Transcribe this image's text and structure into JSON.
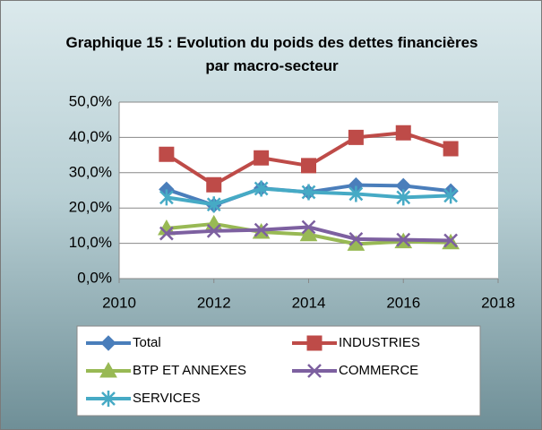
{
  "chart_data": {
    "type": "line",
    "title": "Graphique 15 : Evolution du poids des dettes financières par macro-secteur",
    "x": [
      2011,
      2012,
      2013,
      2014,
      2015,
      2016,
      2017
    ],
    "xlim": [
      2010,
      2018
    ],
    "xticks": [
      2010,
      2012,
      2014,
      2016,
      2018
    ],
    "ylim": [
      0,
      50
    ],
    "yticks": [
      {
        "value": 0,
        "label": "0,0%"
      },
      {
        "value": 10,
        "label": "10,0%"
      },
      {
        "value": 20,
        "label": "20,0%"
      },
      {
        "value": 30,
        "label": "30,0%"
      },
      {
        "value": 40,
        "label": "40,0%"
      },
      {
        "value": 50,
        "label": "50,0%"
      }
    ],
    "grid": true,
    "legend": "bottom",
    "series": [
      {
        "name": "Total",
        "color": "#4a7ebb",
        "values": [
          25.3,
          20.8,
          25.6,
          24.5,
          26.5,
          26.3,
          24.8
        ]
      },
      {
        "name": "INDUSTRIES",
        "color": "#be4b48",
        "values": [
          35.2,
          26.6,
          34.2,
          32.0,
          40.0,
          41.3,
          36.8
        ]
      },
      {
        "name": "BTP ET ANNEXES",
        "color": "#98b954",
        "values": [
          14.2,
          15.5,
          13.2,
          12.5,
          9.8,
          10.5,
          10.2
        ]
      },
      {
        "name": "COMMERCE",
        "color": "#7d60a0",
        "values": [
          12.8,
          13.5,
          13.8,
          14.6,
          11.2,
          11.0,
          10.8
        ]
      },
      {
        "name": "SERVICES",
        "color": "#46aac5",
        "values": [
          23.0,
          21.0,
          25.5,
          24.5,
          24.0,
          23.0,
          23.5
        ]
      }
    ]
  }
}
